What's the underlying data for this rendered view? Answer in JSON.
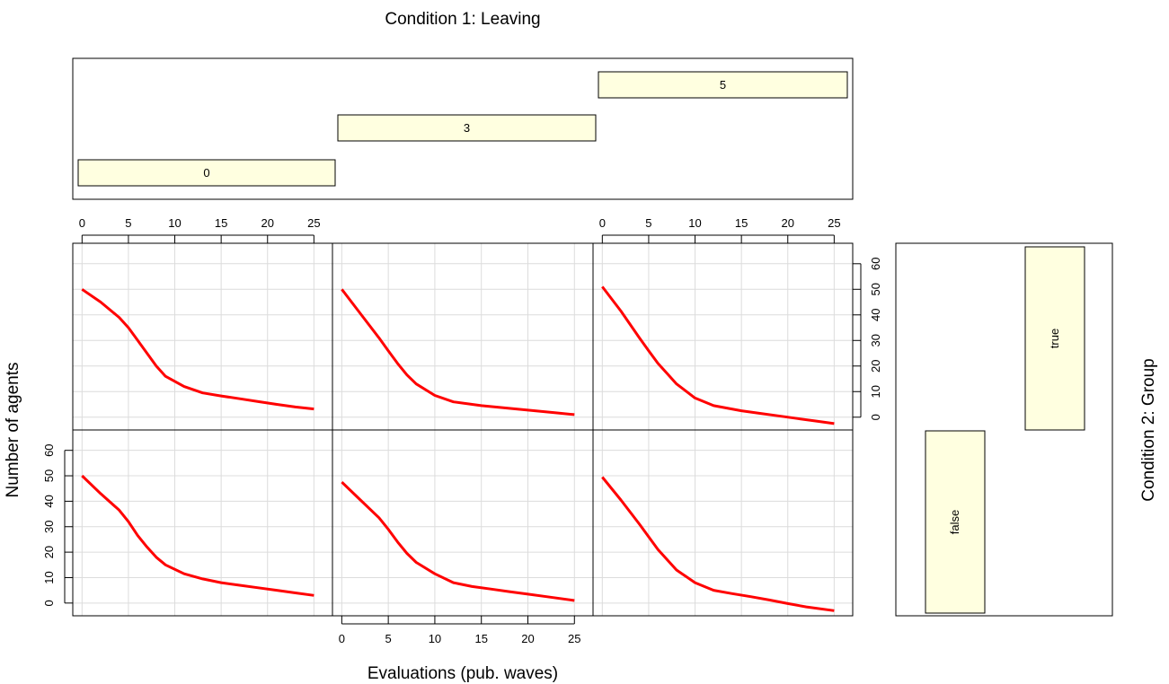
{
  "chart_data": {
    "type": "line",
    "title": "Condition 1: Leaving",
    "xlabel": "Evaluations (pub. waves)",
    "ylabel": "Number of agents",
    "row_condition_label": "Condition 2: Group",
    "xlim": [
      -1,
      27
    ],
    "ylim": [
      -5,
      68
    ],
    "x_ticks": [
      0,
      5,
      10,
      15,
      20,
      25
    ],
    "y_ticks": [
      0,
      10,
      20,
      30,
      40,
      50,
      60
    ],
    "grid": true,
    "line_color": "#ff0000",
    "strip_fill": "#ffffe0",
    "columns": [
      "0",
      "3",
      "5"
    ],
    "rows": [
      "true",
      "false"
    ],
    "panels": [
      {
        "column": "0",
        "row": "true",
        "x": [
          0,
          2,
          4,
          5,
          6,
          7,
          8,
          9,
          11,
          13,
          15,
          17,
          19,
          21,
          23,
          25
        ],
        "y": [
          50,
          45,
          39,
          35,
          30,
          25,
          20,
          16,
          12,
          9.5,
          8.3,
          7.2,
          6.1,
          5,
          4,
          3.2
        ]
      },
      {
        "column": "3",
        "row": "true",
        "x": [
          0,
          2,
          4,
          5,
          6,
          7,
          8,
          10,
          12,
          15,
          17,
          19,
          21,
          23,
          25
        ],
        "y": [
          50,
          40.5,
          31,
          26,
          21,
          16.5,
          13,
          8.5,
          6,
          4.5,
          3.8,
          3.1,
          2.4,
          1.7,
          1
        ]
      },
      {
        "column": "5",
        "row": "true",
        "x": [
          0,
          2,
          4,
          5,
          6,
          7,
          8,
          10,
          12,
          15,
          17,
          19,
          21,
          23,
          25
        ],
        "y": [
          51,
          41.5,
          31,
          26,
          21,
          17,
          13,
          7.5,
          4.5,
          2.5,
          1.5,
          0.5,
          -0.5,
          -1.5,
          -2.5
        ]
      },
      {
        "column": "0",
        "row": "false",
        "x": [
          0,
          2,
          4,
          5,
          6,
          7,
          8,
          9,
          11,
          13,
          15,
          17,
          19,
          21,
          23,
          25
        ],
        "y": [
          50,
          43,
          36.5,
          32,
          26.5,
          22,
          18,
          15,
          11.5,
          9.5,
          8,
          7,
          6,
          5,
          4,
          3
        ]
      },
      {
        "column": "3",
        "row": "false",
        "x": [
          0,
          2,
          4,
          5,
          6,
          7,
          8,
          10,
          12,
          14,
          16,
          18,
          20,
          22,
          25
        ],
        "y": [
          47.5,
          40.5,
          33.5,
          29,
          24,
          19.5,
          16,
          11.5,
          8,
          6.5,
          5.5,
          4.5,
          3.5,
          2.5,
          1
        ]
      },
      {
        "column": "5",
        "row": "false",
        "x": [
          0,
          2,
          4,
          6,
          8,
          10,
          12,
          14,
          16,
          18,
          20,
          22,
          25
        ],
        "y": [
          49.5,
          40.5,
          31,
          21,
          13,
          8,
          5,
          3.7,
          2.5,
          1.2,
          -0.2,
          -1.5,
          -3
        ]
      }
    ]
  }
}
